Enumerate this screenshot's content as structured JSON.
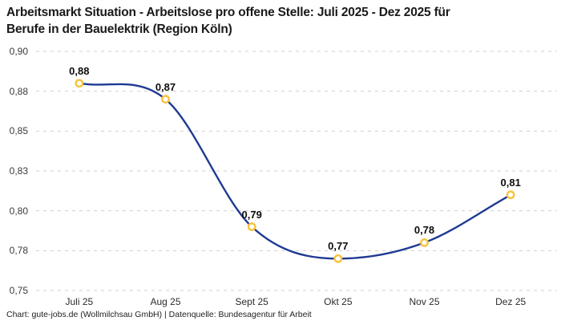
{
  "header": {
    "title_line1": "Arbeitsmarkt Situation - Arbeitslose pro offene Stelle: Juli 2025 - Dez 2025 für",
    "title_line2": "Berufe in der Bauelektrik (Region Köln)"
  },
  "footer": {
    "credit": "Chart: gute-jobs.de (Wollmilchsau GmbH) | Datenquelle: Bundesagentur für Arbeit"
  },
  "chart_data": {
    "type": "line",
    "title": "Arbeitsmarkt Situation - Arbeitslose pro offene Stelle: Juli 2025 - Dez 2025 für Berufe in der Bauelektrik (Region Köln)",
    "categories": [
      "Juli 25",
      "Aug 25",
      "Sept 25",
      "Okt 25",
      "Nov 25",
      "Dez 25"
    ],
    "values": [
      0.88,
      0.87,
      0.79,
      0.77,
      0.78,
      0.81
    ],
    "point_labels": [
      "0,88",
      "0,87",
      "0,79",
      "0,77",
      "0,78",
      "0,81"
    ],
    "xlabel": "",
    "ylabel": "",
    "ylim": [
      0.75,
      0.9
    ],
    "yticks": [
      {
        "value": 0.9,
        "label": "0,90"
      },
      {
        "value": 0.875,
        "label": "0,88"
      },
      {
        "value": 0.85,
        "label": "0,85"
      },
      {
        "value": 0.825,
        "label": "0,83"
      },
      {
        "value": 0.8,
        "label": "0,80"
      },
      {
        "value": 0.775,
        "label": "0,78"
      },
      {
        "value": 0.75,
        "label": "0,75"
      }
    ],
    "grid": "horizontal-dashed",
    "legend": "none",
    "colors": {
      "line": "#1f3a93",
      "marker_ring": "#f7c23c",
      "marker_fill": "#ffffff",
      "grid_line": "#cfcfcf",
      "label_text": "#0d0d0d"
    }
  }
}
